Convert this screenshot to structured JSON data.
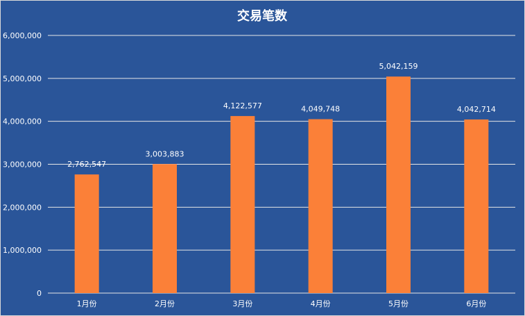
{
  "chart_data": {
    "type": "bar",
    "title": "交易笔数",
    "xlabel": "",
    "ylabel": "",
    "categories": [
      "1月份",
      "2月份",
      "3月份",
      "4月份",
      "5月份",
      "6月份"
    ],
    "values": [
      2762547,
      3003883,
      4122577,
      4049748,
      5042159,
      4042714
    ],
    "value_labels": [
      "2,762,547",
      "3,003,883",
      "4,122,577",
      "4,049,748",
      "5,042,159",
      "4,042,714"
    ],
    "yticks": [
      "0",
      "1,000,000",
      "2,000,000",
      "3,000,000",
      "4,000,000",
      "5,000,000",
      "6,000,000"
    ],
    "ylim": [
      0,
      6000000
    ],
    "grid": true,
    "legend": "none",
    "colors": {
      "background": "#2a5599",
      "bar": "#fb8038",
      "text": "#ffffff",
      "grid": "#e6e6e6"
    }
  }
}
